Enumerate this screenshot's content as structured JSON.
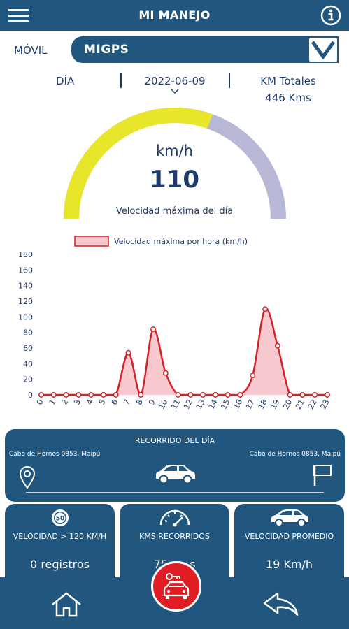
{
  "header": {
    "title": "MI MANEJO",
    "menu_icon": "hamburger-menu-icon",
    "info_icon": "info-icon"
  },
  "vehicle": {
    "label": "MÓVIL",
    "selected": "MIGPS"
  },
  "summary": {
    "day_label": "DÍA",
    "date": "2022-06-09",
    "km_label": "KM Totales",
    "km_value": "446 Kms"
  },
  "gauge": {
    "unit": "km/h",
    "value": "110",
    "caption": "Velocidad máxima del día",
    "fraction": 0.61,
    "filled_color": "#e8e62a",
    "empty_color": "#b6b8d6"
  },
  "chart_data": {
    "type": "line",
    "title": "",
    "legend": [
      "Velocidad máxima por hora (km/h)"
    ],
    "legend_position": "top",
    "x": [
      0,
      1,
      2,
      3,
      4,
      5,
      6,
      7,
      8,
      9,
      10,
      11,
      12,
      13,
      14,
      15,
      16,
      17,
      18,
      19,
      20,
      21,
      22,
      23
    ],
    "series": [
      {
        "name": "Velocidad máxima por hora (km/h)",
        "values": [
          0,
          0,
          0,
          0,
          0,
          0,
          0,
          54,
          0,
          84,
          28,
          0,
          0,
          0,
          0,
          0,
          0,
          25,
          110,
          63,
          0,
          0,
          0,
          0
        ],
        "color": "#d42027",
        "fill": "#f7c9cf"
      }
    ],
    "ylim": [
      0,
      180
    ],
    "yticks": [
      0,
      20,
      40,
      60,
      80,
      100,
      120,
      140,
      160,
      180
    ],
    "area_fill": true
  },
  "route": {
    "title": "RECORRIDO DEL DÍA",
    "from": "Cabo de Hornos 0853, Maipú",
    "to": "Cabo de Hornos 0853, Maipú"
  },
  "stats": [
    {
      "icon": "speed-limit-50-icon",
      "icon_text": "50",
      "label": "VELOCIDAD > 120 KM/H",
      "value": "0 registros"
    },
    {
      "icon": "speedometer-icon",
      "label": "KMS RECORRIDOS",
      "value": "75 Kms"
    },
    {
      "icon": "car-icon",
      "label": "VELOCIDAD PROMEDIO",
      "value": "19 Km/h"
    }
  ],
  "nav": {
    "home_icon": "home-icon",
    "center_icon": "car-key-icon",
    "back_icon": "back-arrow-icon"
  },
  "colors": {
    "primary": "#21577f",
    "text": "#1f3b6b",
    "accent": "#e01d24"
  }
}
